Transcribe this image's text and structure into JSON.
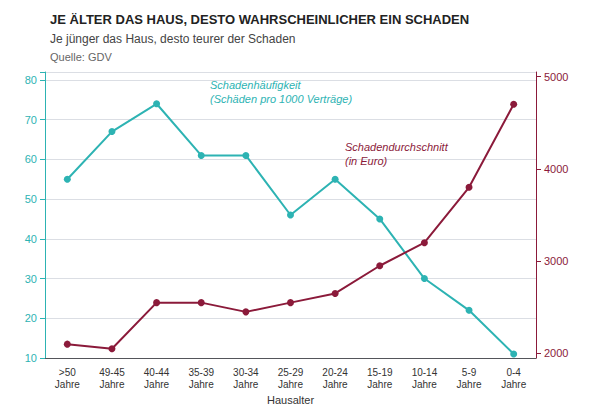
{
  "chart_data": {
    "type": "line",
    "title": "JE ÄLTER DAS HAUS, DESTO WAHRSCHEINLICHER EIN SCHADEN",
    "subtitle": "Je jünger das Haus, desto teurer der Schaden",
    "source": "Quelle: GDV",
    "xlabel": "Hausalter",
    "categories": [
      ">50\nJahre",
      "49-45\nJahre",
      "40-44\nJahre",
      "35-39\nJahre",
      "30-34\nJahre",
      "25-29\nJahre",
      "20-24\nJahre",
      "15-19\nJahre",
      "10-14\nJahre",
      "5-9\nJahre",
      "0-4\nJahre"
    ],
    "series": [
      {
        "name": "Schadenhäufigkeit\n(Schäden pro 1000 Verträge)",
        "color": "#2DB3B3",
        "values": [
          55,
          67,
          74,
          61,
          61,
          46,
          55,
          45,
          30,
          22,
          11
        ]
      },
      {
        "name": "Schadendurchschnitt\n(in Euro)",
        "color": "#8B1A3A",
        "axis": "y2",
        "values": [
          2100,
          2050,
          2550,
          2550,
          2450,
          2550,
          2650,
          2950,
          3200,
          3800,
          4700
        ]
      }
    ],
    "ylim": [
      10,
      82
    ],
    "yticks": [
      10,
      20,
      30,
      40,
      50,
      60,
      70,
      80
    ],
    "y2lim": [
      1950,
      5050
    ],
    "y2ticks": [
      2000,
      3000,
      4000,
      5000
    ],
    "grid": true,
    "marker": "circle"
  }
}
